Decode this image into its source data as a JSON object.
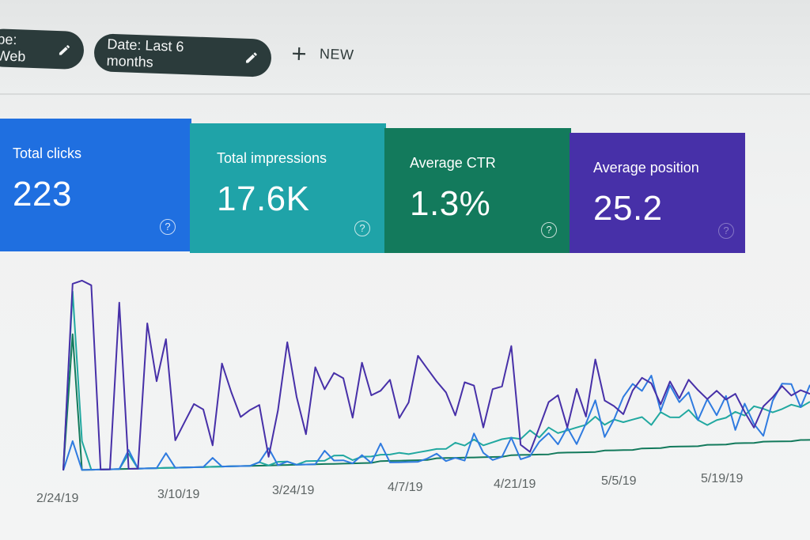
{
  "filters": {
    "type_chip": "pe: Web",
    "date_chip": "Date: Last 6 months",
    "new_label": "NEW"
  },
  "metrics": [
    {
      "label": "Total clicks",
      "value": "223",
      "color": "#1f6fe0"
    },
    {
      "label": "Total impressions",
      "value": "17.6K",
      "color": "#1fa3a8"
    },
    {
      "label": "Average CTR",
      "value": "1.3%",
      "color": "#137a5c"
    },
    {
      "label": "Average position",
      "value": "25.2",
      "color": "#4730a8"
    }
  ],
  "chart_data": {
    "type": "line",
    "x_tick_labels": [
      "2/24/19",
      "3/10/19",
      "3/24/19",
      "4/7/19",
      "4/21/19",
      "5/5/19",
      "5/19/19"
    ],
    "grid": false,
    "legend": "none",
    "ylim": [
      0,
      1
    ],
    "series": [
      {
        "color": "#4730a8",
        "values": [
          0.0,
          0.96,
          0.98,
          0.96,
          0.0,
          0.0,
          0.88,
          0.0,
          0.0,
          0.78,
          0.47,
          0.7,
          0.15,
          0.25,
          0.35,
          0.32,
          0.12,
          0.58,
          0.42,
          0.28,
          0.32,
          0.35,
          0.05,
          0.32,
          0.72,
          0.4,
          0.18,
          0.58,
          0.45,
          0.55,
          0.52,
          0.28,
          0.62,
          0.42,
          0.45,
          0.52,
          0.28,
          0.38,
          0.68,
          0.6,
          0.52,
          0.45,
          0.3,
          0.52,
          0.5,
          0.22,
          0.48,
          0.5,
          0.78,
          0.1,
          0.05,
          0.22,
          0.4,
          0.45,
          0.22,
          0.5,
          0.3,
          0.72,
          0.42,
          0.38,
          0.32,
          0.5,
          0.6,
          0.56,
          0.4,
          0.58,
          0.45,
          0.6,
          0.52,
          0.45,
          0.52,
          0.45,
          0.5,
          0.35,
          0.22,
          0.4,
          0.48,
          0.58,
          0.5,
          0.55,
          0.52
        ]
      },
      {
        "color": "#2f7be0",
        "values": [
          0.0,
          0.15,
          0.0,
          0.0,
          0.0,
          0.0,
          0.0,
          0.1,
          0.0,
          0.0,
          0.0,
          0.08,
          0.0,
          0.0,
          0.0,
          0.0,
          0.05,
          0.0,
          0.0,
          0.0,
          0.0,
          0.02,
          0.1,
          0.0,
          0.02,
          0.0,
          0.0,
          0.0,
          0.08,
          0.02,
          0.02,
          0.0,
          0.05,
          0.0,
          0.12,
          0.0,
          0.0,
          0.0,
          0.0,
          0.02,
          0.05,
          0.0,
          0.02,
          0.0,
          0.18,
          0.05,
          0.0,
          0.02,
          0.15,
          0.0,
          0.02,
          0.12,
          0.18,
          0.1,
          0.22,
          0.1,
          0.25,
          0.42,
          0.15,
          0.28,
          0.45,
          0.55,
          0.5,
          0.62,
          0.35,
          0.55,
          0.42,
          0.5,
          0.28,
          0.45,
          0.32,
          0.48,
          0.2,
          0.42,
          0.25,
          0.15,
          0.45,
          0.6,
          0.6,
          0.4,
          0.6
        ]
      },
      {
        "color": "#21a8a0",
        "values": [
          0.0,
          0.92,
          0.15,
          0.0,
          0.0,
          0.0,
          0.0,
          0.08,
          0.0,
          0.0,
          0.0,
          0.0,
          0.0,
          0.0,
          0.0,
          0.0,
          0.0,
          0.0,
          0.0,
          0.0,
          0.0,
          0.02,
          0.0,
          0.02,
          0.02,
          0.0,
          0.02,
          0.02,
          0.02,
          0.05,
          0.05,
          0.02,
          0.04,
          0.04,
          0.05,
          0.05,
          0.06,
          0.05,
          0.06,
          0.07,
          0.08,
          0.08,
          0.12,
          0.1,
          0.14,
          0.1,
          0.12,
          0.14,
          0.15,
          0.14,
          0.2,
          0.15,
          0.22,
          0.18,
          0.2,
          0.22,
          0.24,
          0.3,
          0.24,
          0.28,
          0.26,
          0.28,
          0.3,
          0.24,
          0.34,
          0.3,
          0.3,
          0.36,
          0.28,
          0.24,
          0.28,
          0.3,
          0.35,
          0.32,
          0.4,
          0.38,
          0.35,
          0.38,
          0.42,
          0.4,
          0.45
        ]
      },
      {
        "color": "#137a5c",
        "values": [
          0.0,
          0.7,
          0.0,
          0.0,
          0.0,
          0.0,
          0.0,
          0.0,
          0.0,
          0.0,
          0.0,
          0.0,
          0.0,
          0.0,
          0.0,
          0.0,
          0.0,
          0.0,
          0.0,
          0.0,
          0.0,
          0.0,
          0.0,
          0.0,
          0.0,
          0.0,
          0.0,
          0.0,
          0.0,
          0.0,
          0.0,
          0.0,
          0.0,
          0.0,
          0.01,
          0.01,
          0.01,
          0.01,
          0.01,
          0.01,
          0.02,
          0.02,
          0.02,
          0.02,
          0.02,
          0.02,
          0.02,
          0.02,
          0.03,
          0.03,
          0.03,
          0.03,
          0.03,
          0.04,
          0.04,
          0.04,
          0.04,
          0.04,
          0.05,
          0.05,
          0.05,
          0.05,
          0.06,
          0.06,
          0.06,
          0.07,
          0.07,
          0.07,
          0.07,
          0.08,
          0.08,
          0.08,
          0.09,
          0.09,
          0.09,
          0.1,
          0.1,
          0.1,
          0.1,
          0.11,
          0.11
        ]
      }
    ]
  }
}
